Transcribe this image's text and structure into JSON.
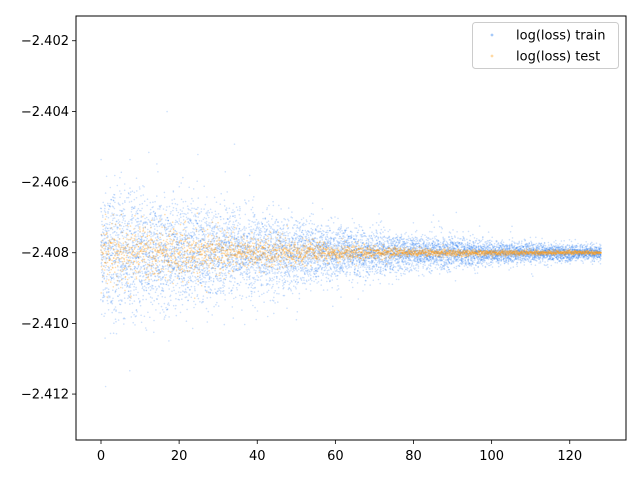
{
  "chart_data": {
    "type": "scatter",
    "title": "",
    "xlabel": "",
    "ylabel": "",
    "xlim": [
      -6.4,
      134.4
    ],
    "ylim": [
      -2.4133,
      -2.4013
    ],
    "x_ticks": [
      0,
      20,
      40,
      60,
      80,
      100,
      120
    ],
    "x_tick_labels": [
      "0",
      "20",
      "40",
      "60",
      "80",
      "100",
      "120"
    ],
    "y_ticks": [
      -2.402,
      -2.404,
      -2.406,
      -2.408,
      -2.41,
      -2.412
    ],
    "y_tick_labels": [
      "−2.402",
      "−2.404",
      "−2.406",
      "−2.408",
      "−2.410",
      "−2.412"
    ],
    "grid": false,
    "legend": {
      "placement": "top-right",
      "entries": [
        "log(loss) train",
        "log(loss) test"
      ]
    },
    "series": [
      {
        "name": "log(loss) train",
        "color": "#1f77f0",
        "description_points": "dense band centered at -2.408, spread decreasing with x",
        "center": -2.408,
        "x_range": [
          0,
          128
        ],
        "spread_envelope": [
          {
            "x": 0,
            "sd": 0.00095
          },
          {
            "x": 20,
            "sd": 0.00075
          },
          {
            "x": 40,
            "sd": 0.00055
          },
          {
            "x": 60,
            "sd": 0.00038
          },
          {
            "x": 80,
            "sd": 0.00025
          },
          {
            "x": 100,
            "sd": 0.00016
          },
          {
            "x": 128,
            "sd": 0.0001
          }
        ]
      },
      {
        "name": "log(loss) test",
        "color": "#ff9f1a",
        "center": -2.408,
        "x_range": [
          0,
          128
        ],
        "spread_envelope": [
          {
            "x": 0,
            "sd": 0.00045
          },
          {
            "x": 20,
            "sd": 0.00035
          },
          {
            "x": 40,
            "sd": 0.00022
          },
          {
            "x": 60,
            "sd": 0.00012
          },
          {
            "x": 80,
            "sd": 6e-05
          },
          {
            "x": 100,
            "sd": 4e-05
          },
          {
            "x": 128,
            "sd": 3e-05
          }
        ]
      }
    ]
  }
}
